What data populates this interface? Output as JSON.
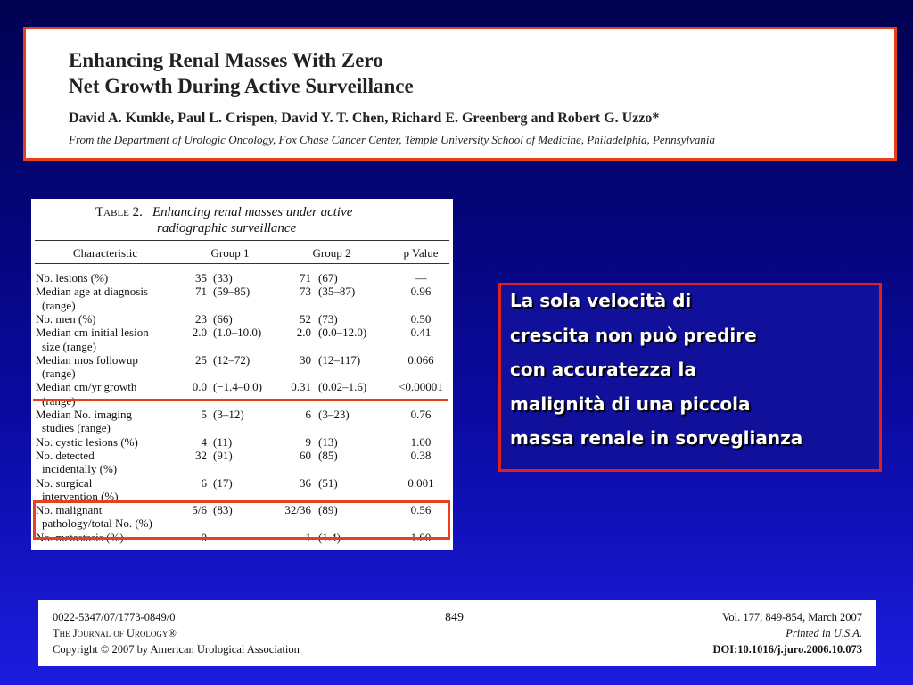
{
  "header": {
    "title": [
      "Enhancing Renal Masses With Zero",
      "Net Growth During Active Surveillance"
    ],
    "authors": "David A. Kunkle, Paul L. Crispen, David Y. T. Chen, Richard E. Greenberg and Robert G. Uzzo*",
    "affiliation": "From the Department of Urologic Oncology, Fox Chase Cancer Center, Temple University School of Medicine, Philadelphia, Pennsylvania"
  },
  "table": {
    "label": "Table 2.",
    "caption": [
      "Enhancing renal masses under active",
      "radiographic surveillance"
    ],
    "columns": [
      "Characteristic",
      "Group 1",
      "Group 2",
      "p Value"
    ],
    "rows": [
      {
        "characteristic": [
          "No. lesions (%)"
        ],
        "cells": [
          "35",
          "(33)",
          "71",
          "(67)",
          "—"
        ]
      },
      {
        "characteristic": [
          "Median age at diagnosis",
          "(range)"
        ],
        "cells": [
          "71",
          "(59–85)",
          "73",
          "(35–87)",
          "0.96"
        ]
      },
      {
        "characteristic": [
          "No. men (%)"
        ],
        "cells": [
          "23",
          "(66)",
          "52",
          "(73)",
          "0.50"
        ]
      },
      {
        "characteristic": [
          "Median cm initial lesion",
          "size (range)"
        ],
        "cells": [
          "2.0",
          "(1.0–10.0)",
          "2.0",
          "(0.0–12.0)",
          "0.41"
        ]
      },
      {
        "characteristic": [
          "Median mos followup",
          "(range)"
        ],
        "cells": [
          "25",
          "(12–72)",
          "30",
          "(12–117)",
          "0.066"
        ]
      },
      {
        "characteristic": [
          "Median cm/yr growth",
          "(range)"
        ],
        "cells": [
          "0.0",
          "(−1.4–0.0)",
          "0.31",
          "(0.02–1.6)",
          "<0.00001"
        ]
      },
      {
        "characteristic": [
          "Median No. imaging",
          "studies (range)"
        ],
        "cells": [
          "5",
          "(3–12)",
          "6",
          "(3–23)",
          "0.76"
        ]
      },
      {
        "characteristic": [
          "No. cystic lesions (%)"
        ],
        "cells": [
          "4",
          "(11)",
          "9",
          "(13)",
          "1.00"
        ]
      },
      {
        "characteristic": [
          "No. detected",
          "incidentally (%)"
        ],
        "cells": [
          "32",
          "(91)",
          "60",
          "(85)",
          "0.38"
        ]
      },
      {
        "characteristic": [
          "No. surgical",
          "intervention (%)"
        ],
        "cells": [
          "6",
          "(17)",
          "36",
          "(51)",
          "0.001"
        ]
      },
      {
        "characteristic": [
          "No. malignant",
          "pathology/total No. (%)"
        ],
        "cells": [
          "5/6",
          "(83)",
          "32/36",
          "(89)",
          "0.56"
        ]
      },
      {
        "characteristic": [
          "No. metastasis (%)"
        ],
        "cells": [
          "0",
          null,
          "1",
          "(1.4)",
          "1.00"
        ]
      }
    ]
  },
  "callout": {
    "lines": [
      "La sola velocità di",
      "crescita non può predire",
      "con accuratezza la",
      "malignità di una piccola",
      "massa renale in sorveglianza"
    ]
  },
  "footer": {
    "left": [
      "0022-5347/07/1773-0849/0",
      "The Journal of Urology®",
      "Copyright © 2007 by American Urological Association"
    ],
    "page": "849",
    "right": [
      "Vol. 177, 849-854, March 2007",
      "Printed in U.S.A.",
      "DOI:10.1016/j.juro.2006.10.073"
    ]
  }
}
